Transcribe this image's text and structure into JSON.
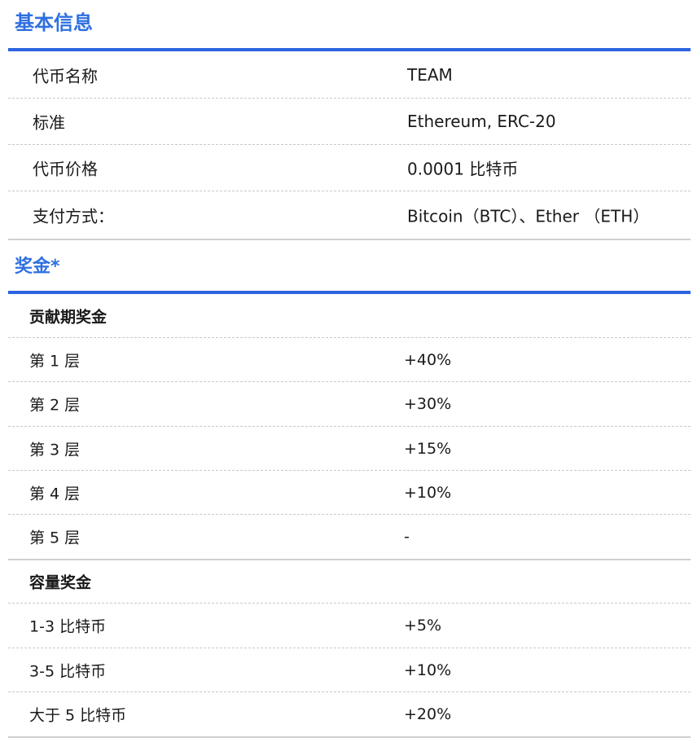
{
  "basic_info": {
    "title": "基本信息",
    "rows": [
      {
        "label": "代币名称",
        "value": "TEAM"
      },
      {
        "label": "标准",
        "value": "Ethereum, ERC-20"
      },
      {
        "label": "代币价格",
        "value": "0.0001 比特币"
      },
      {
        "label": "支付方式：",
        "value": "Bitcoin（BTC）、Ether （ETH）"
      }
    ]
  },
  "bonus": {
    "title": "奖金*",
    "contribution": {
      "header": "贡献期奖金",
      "rows": [
        {
          "label": "第 1 层",
          "value": "+40%"
        },
        {
          "label": "第 2 层",
          "value": "+30%"
        },
        {
          "label": "第 3 层",
          "value": "+15%"
        },
        {
          "label": "第 4 层",
          "value": "+10%"
        },
        {
          "label": "第 5 层",
          "value": "-"
        }
      ]
    },
    "volume": {
      "header": "容量奖金",
      "rows": [
        {
          "label": "1-3 比特币",
          "value": "+5%"
        },
        {
          "label": "3-5 比特币",
          "value": "+10%"
        },
        {
          "label": "大于 5 比特币",
          "value": "+20%"
        }
      ]
    }
  },
  "colors": {
    "accent": "#2f6fe0",
    "rule": "#2d63e0",
    "divider": "#cfcfcf"
  }
}
